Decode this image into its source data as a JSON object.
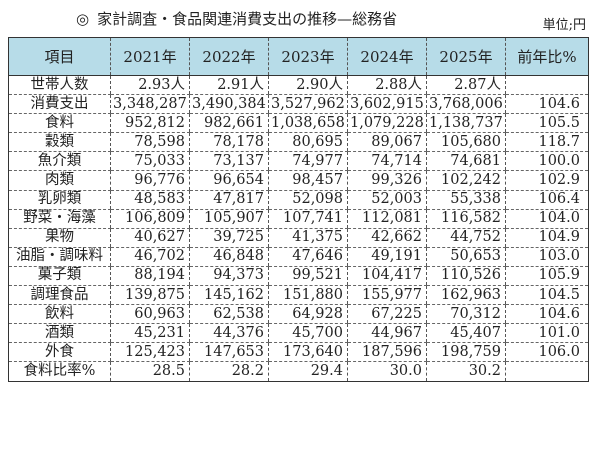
{
  "title": {
    "mark": "◎",
    "text": "家計調査・食品関連消費支出の推移—総務省"
  },
  "unit": "単位;円",
  "table": {
    "headers": [
      "項目",
      "2021年",
      "2022年",
      "2023年",
      "2024年",
      "2025年",
      "前年比%"
    ],
    "rows": [
      {
        "label": "世帯人数",
        "values": [
          "2.93人",
          "2.91人",
          "2.90人",
          "2.88人",
          "2.87人"
        ],
        "ratio": ""
      },
      {
        "label": "消費支出",
        "values": [
          "3,348,287",
          "3,490,384",
          "3,527,962",
          "3,602,915",
          "3,768,006"
        ],
        "ratio": "104.6"
      },
      {
        "label": "食料",
        "values": [
          "952,812",
          "982,661",
          "1,038,658",
          "1,079,228",
          "1,138,737"
        ],
        "ratio": "105.5"
      },
      {
        "label": "穀類",
        "values": [
          "78,598",
          "78,178",
          "80,695",
          "89,067",
          "105,680"
        ],
        "ratio": "118.7"
      },
      {
        "label": "魚介類",
        "values": [
          "75,033",
          "73,137",
          "74,977",
          "74,714",
          "74,681"
        ],
        "ratio": "100.0"
      },
      {
        "label": "肉類",
        "values": [
          "96,776",
          "96,654",
          "98,457",
          "99,326",
          "102,242"
        ],
        "ratio": "102.9"
      },
      {
        "label": "乳卵類",
        "values": [
          "48,583",
          "47,817",
          "52,098",
          "52,003",
          "55,338"
        ],
        "ratio": "106.4"
      },
      {
        "label": "野菜・海藻",
        "values": [
          "106,809",
          "105,907",
          "107,741",
          "112,081",
          "116,582"
        ],
        "ratio": "104.0"
      },
      {
        "label": "果物",
        "values": [
          "40,627",
          "39,725",
          "41,375",
          "42,662",
          "44,752"
        ],
        "ratio": "104.9"
      },
      {
        "label": "油脂・調味料",
        "values": [
          "46,702",
          "46,848",
          "47,646",
          "49,191",
          "50,653"
        ],
        "ratio": "103.0"
      },
      {
        "label": "菓子類",
        "values": [
          "88,194",
          "94,373",
          "99,521",
          "104,417",
          "110,526"
        ],
        "ratio": "105.9"
      },
      {
        "label": "調理食品",
        "values": [
          "139,875",
          "145,162",
          "151,880",
          "155,977",
          "162,963"
        ],
        "ratio": "104.5"
      },
      {
        "label": "飲料",
        "values": [
          "60,963",
          "62,538",
          "64,928",
          "67,225",
          "70,312"
        ],
        "ratio": "104.6"
      },
      {
        "label": "酒類",
        "values": [
          "45,231",
          "44,376",
          "45,700",
          "44,967",
          "45,407"
        ],
        "ratio": "101.0"
      },
      {
        "label": "外食",
        "values": [
          "125,423",
          "147,653",
          "173,640",
          "187,596",
          "198,759"
        ],
        "ratio": "106.0"
      },
      {
        "label": "食料比率%",
        "values": [
          "28.5",
          "28.2",
          "29.4",
          "30.0",
          "30.2"
        ],
        "ratio": ""
      }
    ]
  },
  "colors": {
    "header_bg": "#b7dce8",
    "border": "#333333"
  }
}
